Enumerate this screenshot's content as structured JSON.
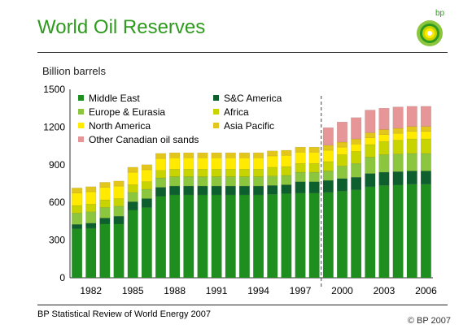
{
  "header": {
    "title": "World Oil Reserves",
    "logo_text": "bp"
  },
  "footer": {
    "source": "BP Statistical Review of World Energy 2007",
    "copyright": "© BP 2007"
  },
  "chart_data": {
    "type": "bar",
    "stacked": true,
    "ylabel": "Billion barrels",
    "ylim": [
      0,
      1500
    ],
    "yticks": [
      "0",
      "300",
      "600",
      "900",
      "1200",
      "1500"
    ],
    "x": [
      1981,
      1982,
      1983,
      1984,
      1985,
      1986,
      1987,
      1988,
      1989,
      1990,
      1991,
      1992,
      1993,
      1994,
      1995,
      1996,
      1997,
      1998,
      1999,
      2000,
      2001,
      2002,
      2003,
      2004,
      2005,
      2006
    ],
    "xtick_labels": [
      "1982",
      "1985",
      "1988",
      "1991",
      "1994",
      "1997",
      "2000",
      "2003",
      "2006"
    ],
    "divider_after": 1998,
    "legend": {
      "position": "top-left",
      "columns": 2
    },
    "series": [
      {
        "name": "Middle East",
        "color": "#1e8f1e",
        "values": [
          390,
          395,
          430,
          430,
          540,
          560,
          650,
          660,
          660,
          660,
          660,
          660,
          660,
          660,
          665,
          670,
          675,
          675,
          680,
          690,
          700,
          725,
          735,
          740,
          745,
          745
        ]
      },
      {
        "name": "S&C America",
        "color": "#0d5f2e",
        "values": [
          35,
          40,
          45,
          60,
          65,
          70,
          70,
          70,
          70,
          70,
          70,
          70,
          70,
          70,
          70,
          70,
          90,
          90,
          95,
          100,
          100,
          105,
          105,
          105,
          105,
          105
        ]
      },
      {
        "name": "Europe & Eurasia",
        "color": "#8cc63f",
        "values": [
          90,
          90,
          85,
          80,
          75,
          75,
          75,
          75,
          75,
          75,
          75,
          75,
          75,
          75,
          75,
          75,
          75,
          75,
          75,
          100,
          110,
          130,
          140,
          140,
          140,
          140
        ]
      },
      {
        "name": "Africa",
        "color": "#c8d400",
        "values": [
          60,
          60,
          60,
          60,
          60,
          60,
          60,
          60,
          60,
          60,
          60,
          60,
          60,
          60,
          70,
          70,
          70,
          70,
          75,
          90,
          95,
          100,
          105,
          110,
          115,
          115
        ]
      },
      {
        "name": "North America",
        "color": "#ffea00",
        "values": [
          100,
          100,
          100,
          100,
          100,
          95,
          95,
          90,
          90,
          90,
          90,
          90,
          90,
          90,
          90,
          90,
          90,
          90,
          90,
          60,
          60,
          55,
          55,
          55,
          60,
          60
        ]
      },
      {
        "name": "Asia Pacific",
        "color": "#e3c61b",
        "values": [
          40,
          40,
          40,
          40,
          40,
          40,
          40,
          40,
          40,
          40,
          40,
          40,
          40,
          40,
          40,
          40,
          40,
          40,
          40,
          40,
          40,
          40,
          40,
          40,
          40,
          40
        ]
      },
      {
        "name": "Other Canadian oil sands",
        "color": "#e69696",
        "values": [
          0,
          0,
          0,
          0,
          0,
          0,
          0,
          0,
          0,
          0,
          0,
          0,
          0,
          0,
          0,
          0,
          0,
          0,
          140,
          160,
          170,
          180,
          170,
          170,
          160,
          160
        ]
      }
    ]
  }
}
